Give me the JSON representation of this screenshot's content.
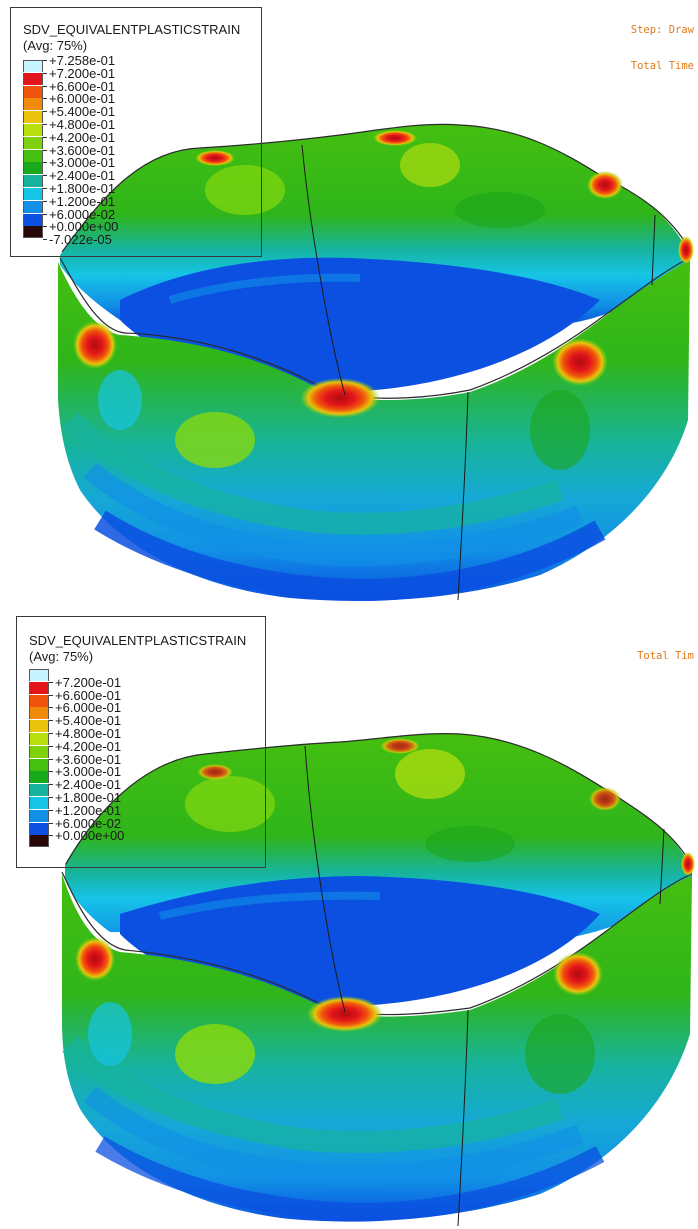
{
  "panels": [
    {
      "legend": {
        "title": "SDV_EQUIVALENTPLASTICSTRAIN",
        "subtitle": "(Avg: 75%)",
        "labels": [
          "+7.258e-01",
          "+7.200e-01",
          "+6.600e-01",
          "+6.000e-01",
          "+5.400e-01",
          "+4.800e-01",
          "+4.200e-01",
          "+3.600e-01",
          "+3.000e-01",
          "+2.400e-01",
          "+1.800e-01",
          "+1.200e-01",
          "+6.000e-02",
          "+0.000e+00",
          "-7.022e-05"
        ],
        "colors": [
          "#c8f4ff",
          "#e2151c",
          "#f0540c",
          "#ef8a0b",
          "#e9c30c",
          "#b9df0f",
          "#7ed10c",
          "#45bf10",
          "#19aa1c",
          "#17b39e",
          "#16c4e6",
          "#1190e6",
          "#0b50e0",
          "#2a0707"
        ]
      },
      "status_lines": [
        "Step: Draw",
        "Total Time"
      ]
    },
    {
      "legend": {
        "title": "SDV_EQUIVALENTPLASTICSTRAIN",
        "subtitle": "(Avg: 75%)",
        "labels": [
          "+7.200e-01",
          "+6.600e-01",
          "+6.000e-01",
          "+5.400e-01",
          "+4.800e-01",
          "+4.200e-01",
          "+3.600e-01",
          "+3.000e-01",
          "+2.400e-01",
          "+1.800e-01",
          "+1.200e-01",
          "+6.000e-02",
          "+0.000e+00"
        ],
        "colors": [
          "#c8f4ff",
          "#e2151c",
          "#f0540c",
          "#ef8a0b",
          "#e9c30c",
          "#b9df0f",
          "#7ed10c",
          "#45bf10",
          "#19aa1c",
          "#17b39e",
          "#16c4e6",
          "#1190e6",
          "#0b50e0",
          "#2a0707"
        ]
      },
      "status_lines": [
        "Total Tim"
      ]
    }
  ],
  "palette": {
    "wall_green": "#3cc41a",
    "wall_light_green": "#86d80f",
    "wall_dark_green": "#1da51a",
    "teal": "#17b39e",
    "cyan": "#16c4e6",
    "blue": "#1190e6",
    "deep_blue": "#0b50e0",
    "hot_red": "#e2151c",
    "hot_orange": "#f0540c",
    "yellow": "#e9c30c"
  }
}
